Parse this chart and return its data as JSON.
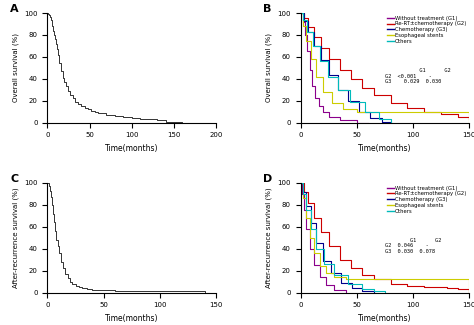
{
  "panel_labels": [
    "A",
    "B",
    "C",
    "D"
  ],
  "panel_A": {
    "ylabel": "Overall survival (%)",
    "xlabel": "Time(months)",
    "xlim": [
      0,
      200
    ],
    "ylim": [
      0,
      100
    ],
    "xticks": [
      0,
      50,
      100,
      150,
      200
    ],
    "yticks": [
      0,
      20,
      40,
      60,
      80,
      100
    ],
    "color": "#333333"
  },
  "panel_B": {
    "ylabel": "Overall survival (%)",
    "xlabel": "Time(months)",
    "xlim": [
      0,
      150
    ],
    "ylim": [
      0,
      100
    ],
    "xticks": [
      0,
      50,
      100,
      150
    ],
    "yticks": [
      0,
      20,
      40,
      60,
      80,
      100
    ],
    "legend_labels": [
      "Without treatment (G1)",
      "Re-RT±chemotherapy (G2)",
      "Chemotherapy (G3)",
      "Esophageal stents",
      "Others"
    ],
    "legend_colors": [
      "#8B008B",
      "#CC0000",
      "#00008B",
      "#CCCC00",
      "#00BBBB"
    ],
    "pvalue_text": "           G1      G2\nG2  <0.001    -\nG3    0.029  0.030"
  },
  "panel_C": {
    "ylabel": "After-recurrence survival (%)",
    "xlabel": "Time(months)",
    "xlim": [
      0,
      150
    ],
    "ylim": [
      0,
      100
    ],
    "xticks": [
      0,
      50,
      100,
      150
    ],
    "yticks": [
      0,
      20,
      40,
      60,
      80,
      100
    ],
    "color": "#333333"
  },
  "panel_D": {
    "ylabel": "After-recurrence survival (%)",
    "xlabel": "Time(months)",
    "xlim": [
      0,
      150
    ],
    "ylim": [
      0,
      100
    ],
    "xticks": [
      0,
      50,
      100,
      150
    ],
    "yticks": [
      0,
      20,
      40,
      60,
      80,
      100
    ],
    "legend_labels": [
      "Without treatment (G1)",
      "Re-RT±chemotherapy (G2)",
      "Chemotherapy (G3)",
      "Esophageal stents",
      "Others"
    ],
    "legend_colors": [
      "#8B008B",
      "#CC0000",
      "#00008B",
      "#CCCC00",
      "#00BBBB"
    ],
    "pvalue_text": "        G1      G2\nG2  0.046    -\nG3  0.030  0.078"
  }
}
